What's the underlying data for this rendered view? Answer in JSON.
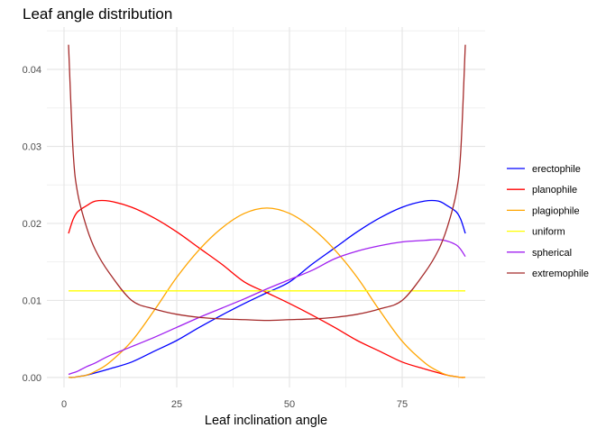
{
  "chart_data": {
    "type": "line",
    "title": "Leaf angle distribution",
    "xlabel": "Leaf inclination angle",
    "ylabel": "",
    "xlim": [
      -3.8,
      93.4
    ],
    "ylim": [
      -0.0013,
      0.0455
    ],
    "x_ticks": [
      0,
      25,
      50,
      75
    ],
    "x_tick_labels": [
      "0",
      "25",
      "50",
      "75"
    ],
    "y_ticks": [
      0,
      0.01,
      0.02,
      0.03,
      0.04
    ],
    "y_tick_labels": [
      "0.00",
      "0.01",
      "0.02",
      "0.03",
      "0.04"
    ],
    "grid": true,
    "legend_position": "right",
    "x": [
      1,
      2,
      3,
      5,
      7,
      10,
      15,
      20,
      25,
      30,
      35,
      40,
      45,
      50,
      55,
      60,
      65,
      70,
      75,
      80,
      83,
      85,
      87,
      88,
      89
    ],
    "series": [
      {
        "name": "erectophile",
        "color": "#0000FF",
        "values": [
          0,
          0,
          0.0001,
          0.0003,
          0.0006,
          0.0011,
          0.002,
          0.0034,
          0.0048,
          0.0065,
          0.0081,
          0.0096,
          0.011,
          0.0124,
          0.0147,
          0.0168,
          0.0189,
          0.0207,
          0.0221,
          0.0229,
          0.0229,
          0.0223,
          0.0215,
          0.0205,
          0.0187
        ]
      },
      {
        "name": "planophile",
        "color": "#FF0000",
        "values": [
          0.0187,
          0.0205,
          0.0215,
          0.0223,
          0.0229,
          0.0229,
          0.0221,
          0.0207,
          0.0189,
          0.0168,
          0.0147,
          0.0124,
          0.011,
          0.0096,
          0.0081,
          0.0065,
          0.0048,
          0.0034,
          0.002,
          0.0011,
          0.0006,
          0.0003,
          0.0001,
          0,
          0
        ]
      },
      {
        "name": "plagiophile",
        "color": "#FFA500",
        "values": [
          0,
          0,
          0.0001,
          0.0003,
          0.0008,
          0.0019,
          0.0047,
          0.0087,
          0.013,
          0.0166,
          0.0194,
          0.0213,
          0.022,
          0.0213,
          0.0194,
          0.0166,
          0.013,
          0.0087,
          0.0047,
          0.0019,
          0.0008,
          0.0003,
          0.0001,
          0,
          0
        ]
      },
      {
        "name": "uniform",
        "color": "#FFFF00",
        "values": [
          0.01124,
          0.01124,
          0.01124,
          0.01124,
          0.01124,
          0.01124,
          0.01124,
          0.01124,
          0.01124,
          0.01124,
          0.01124,
          0.01124,
          0.01124,
          0.01124,
          0.01124,
          0.01124,
          0.01124,
          0.01124,
          0.01124,
          0.01124,
          0.01124,
          0.01124,
          0.01124,
          0.01124,
          0.01124
        ]
      },
      {
        "name": "spherical",
        "color": "#A020F0",
        "values": [
          0.0004,
          0.0006,
          0.0008,
          0.0014,
          0.0019,
          0.0028,
          0.004,
          0.0052,
          0.0065,
          0.0078,
          0.009,
          0.0102,
          0.0115,
          0.0127,
          0.0139,
          0.0154,
          0.0164,
          0.0171,
          0.0176,
          0.0178,
          0.0179,
          0.0177,
          0.0172,
          0.0166,
          0.0157
        ]
      },
      {
        "name": "extremophile",
        "color": "#A52A2A",
        "values": [
          0.0432,
          0.0295,
          0.024,
          0.0195,
          0.0165,
          0.0136,
          0.01,
          0.0089,
          0.0082,
          0.0078,
          0.0076,
          0.0075,
          0.0074,
          0.0075,
          0.0076,
          0.0078,
          0.0082,
          0.0089,
          0.01,
          0.0136,
          0.0165,
          0.0195,
          0.024,
          0.0295,
          0.0432
        ]
      }
    ]
  }
}
